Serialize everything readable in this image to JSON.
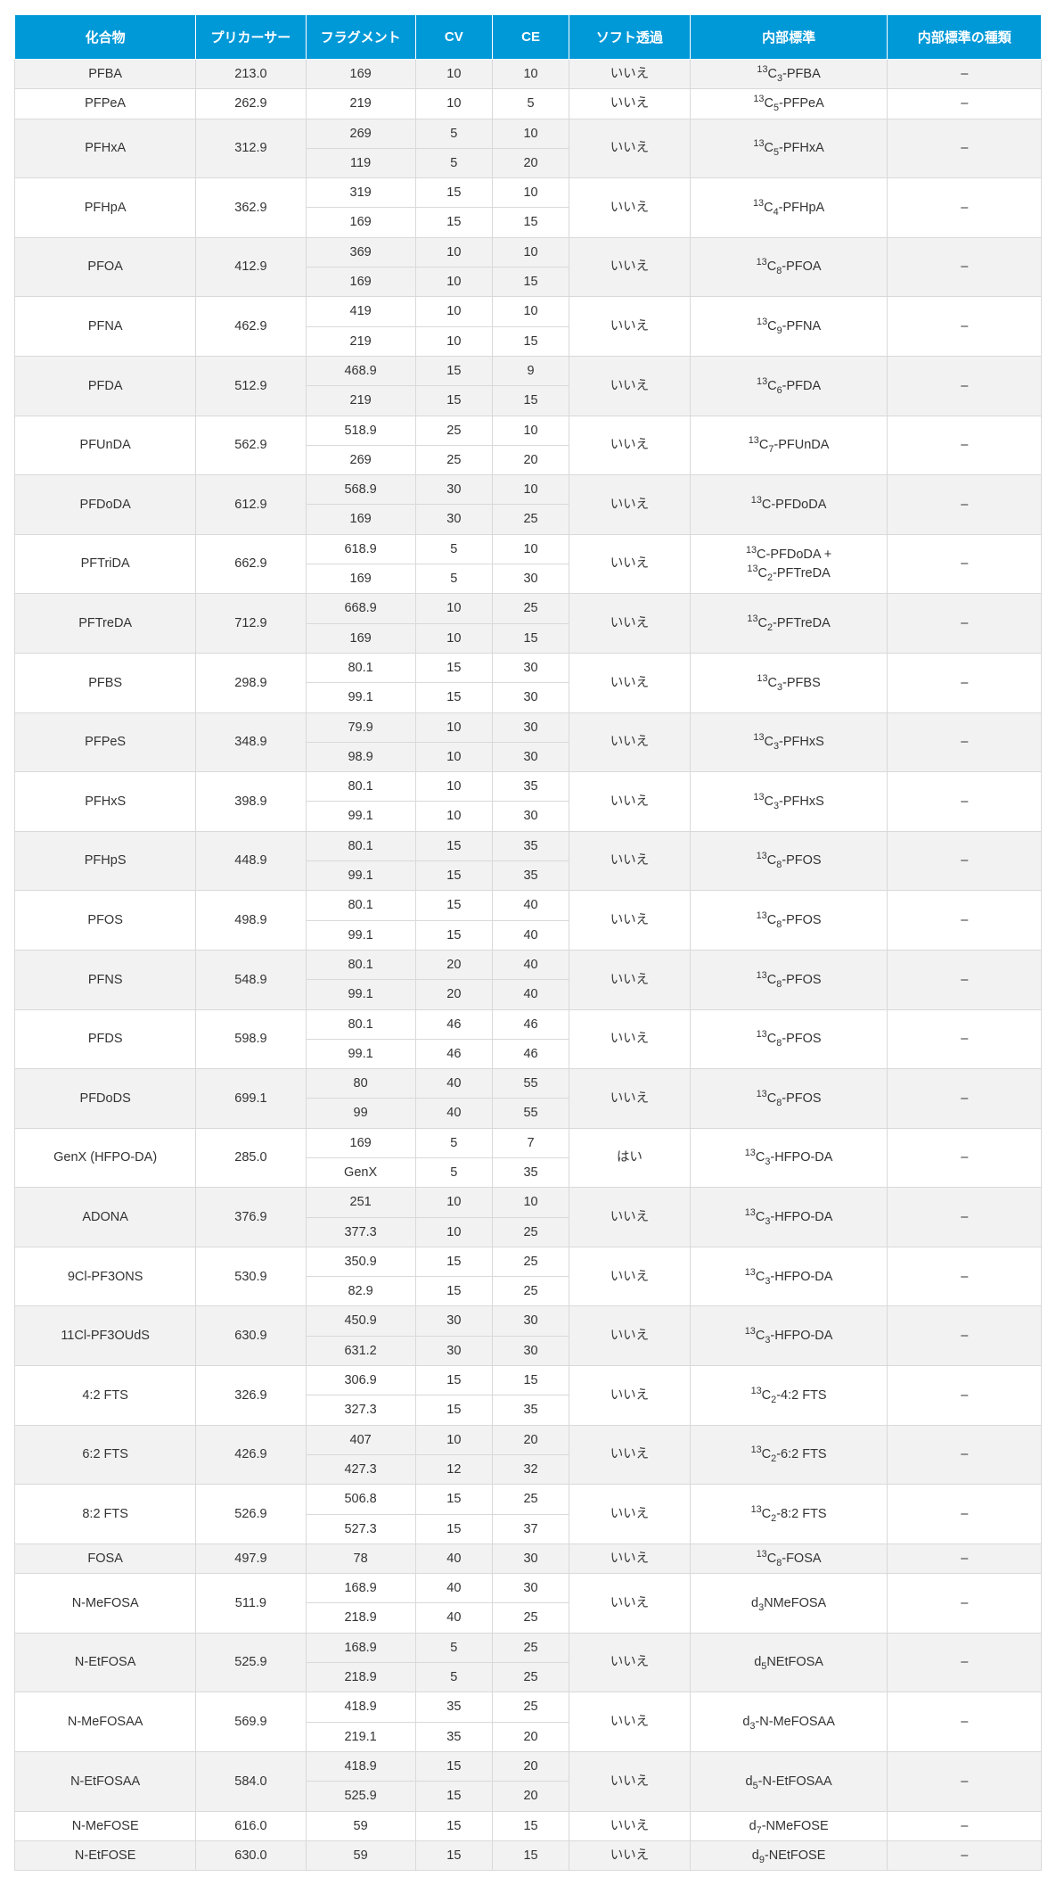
{
  "table": {
    "header_bg": "#0099d8",
    "header_fg": "#ffffff",
    "row_alt_bg": "#f2f2f2",
    "row_bg": "#ffffff",
    "border_color": "#d9d9d9",
    "columns": [
      "化合物",
      "プリカーサー",
      "フラグメント",
      "CV",
      "CE",
      "ソフト透過",
      "内部標準",
      "内部標準の種類"
    ],
    "col_widths_pct": [
      16.5,
      10,
      10,
      7,
      7,
      11,
      18,
      14
    ],
    "groups": [
      {
        "compound": "PFBA",
        "precursor": "213.0",
        "soft": "いいえ",
        "istd_html": "<sup>13</sup>C<sub>3</sub>-PFBA",
        "type": "–",
        "rows": [
          {
            "frag": "169",
            "cv": "10",
            "ce": "10"
          }
        ]
      },
      {
        "compound": "PFPeA",
        "precursor": "262.9",
        "soft": "いいえ",
        "istd_html": "<sup>13</sup>C<sub>5</sub>-PFPeA",
        "type": "–",
        "rows": [
          {
            "frag": "219",
            "cv": "10",
            "ce": "5"
          }
        ]
      },
      {
        "compound": "PFHxA",
        "precursor": "312.9",
        "soft": "いいえ",
        "istd_html": "<sup>13</sup>C<sub>5</sub>-PFHxA",
        "type": "–",
        "rows": [
          {
            "frag": "269",
            "cv": "5",
            "ce": "10"
          },
          {
            "frag": "119",
            "cv": "5",
            "ce": "20"
          }
        ]
      },
      {
        "compound": "PFHpA",
        "precursor": "362.9",
        "soft": "いいえ",
        "istd_html": "<sup>13</sup>C<sub>4</sub>-PFHpA",
        "type": "–",
        "rows": [
          {
            "frag": "319",
            "cv": "15",
            "ce": "10"
          },
          {
            "frag": "169",
            "cv": "15",
            "ce": "15"
          }
        ]
      },
      {
        "compound": "PFOA",
        "precursor": "412.9",
        "soft": "いいえ",
        "istd_html": "<sup>13</sup>C<sub>8</sub>-PFOA",
        "type": "–",
        "rows": [
          {
            "frag": "369",
            "cv": "10",
            "ce": "10"
          },
          {
            "frag": "169",
            "cv": "10",
            "ce": "15"
          }
        ]
      },
      {
        "compound": "PFNA",
        "precursor": "462.9",
        "soft": "いいえ",
        "istd_html": "<sup>13</sup>C<sub>9</sub>-PFNA",
        "type": "–",
        "rows": [
          {
            "frag": "419",
            "cv": "10",
            "ce": "10"
          },
          {
            "frag": "219",
            "cv": "10",
            "ce": "15"
          }
        ]
      },
      {
        "compound": "PFDA",
        "precursor": "512.9",
        "soft": "いいえ",
        "istd_html": "<sup>13</sup>C<sub>6</sub>-PFDA",
        "type": "–",
        "rows": [
          {
            "frag": "468.9",
            "cv": "15",
            "ce": "9"
          },
          {
            "frag": "219",
            "cv": "15",
            "ce": "15"
          }
        ]
      },
      {
        "compound": "PFUnDA",
        "precursor": "562.9",
        "soft": "いいえ",
        "istd_html": "<sup>13</sup>C<sub>7</sub>-PFUnDA",
        "type": "–",
        "rows": [
          {
            "frag": "518.9",
            "cv": "25",
            "ce": "10"
          },
          {
            "frag": "269",
            "cv": "25",
            "ce": "20"
          }
        ]
      },
      {
        "compound": "PFDoDA",
        "precursor": "612.9",
        "soft": "いいえ",
        "istd_html": "<sup>13</sup>C-PFDoDA",
        "type": "–",
        "rows": [
          {
            "frag": "568.9",
            "cv": "30",
            "ce": "10"
          },
          {
            "frag": "169",
            "cv": "30",
            "ce": "25"
          }
        ]
      },
      {
        "compound": "PFTriDA",
        "precursor": "662.9",
        "soft": "いいえ",
        "istd_html": "<sup>13</sup>C-PFDoDA +<br><sup>13</sup>C<sub>2</sub>-PFTreDA",
        "type": "–",
        "rows": [
          {
            "frag": "618.9",
            "cv": "5",
            "ce": "10"
          },
          {
            "frag": "169",
            "cv": "5",
            "ce": "30"
          }
        ]
      },
      {
        "compound": "PFTreDA",
        "precursor": "712.9",
        "soft": "いいえ",
        "istd_html": "<sup>13</sup>C<sub>2</sub>-PFTreDA",
        "type": "–",
        "rows": [
          {
            "frag": "668.9",
            "cv": "10",
            "ce": "25"
          },
          {
            "frag": "169",
            "cv": "10",
            "ce": "15"
          }
        ]
      },
      {
        "compound": "PFBS",
        "precursor": "298.9",
        "soft": "いいえ",
        "istd_html": "<sup>13</sup>C<sub>3</sub>-PFBS",
        "type": "–",
        "rows": [
          {
            "frag": "80.1",
            "cv": "15",
            "ce": "30"
          },
          {
            "frag": "99.1",
            "cv": "15",
            "ce": "30"
          }
        ]
      },
      {
        "compound": "PFPeS",
        "precursor": "348.9",
        "soft": "いいえ",
        "istd_html": "<sup>13</sup>C<sub>3</sub>-PFHxS",
        "type": "–",
        "rows": [
          {
            "frag": "79.9",
            "cv": "10",
            "ce": "30"
          },
          {
            "frag": "98.9",
            "cv": "10",
            "ce": "30"
          }
        ]
      },
      {
        "compound": "PFHxS",
        "precursor": "398.9",
        "soft": "いいえ",
        "istd_html": "<sup>13</sup>C<sub>3</sub>-PFHxS",
        "type": "–",
        "rows": [
          {
            "frag": "80.1",
            "cv": "10",
            "ce": "35"
          },
          {
            "frag": "99.1",
            "cv": "10",
            "ce": "30"
          }
        ]
      },
      {
        "compound": "PFHpS",
        "precursor": "448.9",
        "soft": "いいえ",
        "istd_html": "<sup>13</sup>C<sub>8</sub>-PFOS",
        "type": "–",
        "rows": [
          {
            "frag": "80.1",
            "cv": "15",
            "ce": "35"
          },
          {
            "frag": "99.1",
            "cv": "15",
            "ce": "35"
          }
        ]
      },
      {
        "compound": "PFOS",
        "precursor": "498.9",
        "soft": "いいえ",
        "istd_html": "<sup>13</sup>C<sub>8</sub>-PFOS",
        "type": "–",
        "rows": [
          {
            "frag": "80.1",
            "cv": "15",
            "ce": "40"
          },
          {
            "frag": "99.1",
            "cv": "15",
            "ce": "40"
          }
        ]
      },
      {
        "compound": "PFNS",
        "precursor": "548.9",
        "soft": "いいえ",
        "istd_html": "<sup>13</sup>C<sub>8</sub>-PFOS",
        "type": "–",
        "rows": [
          {
            "frag": "80.1",
            "cv": "20",
            "ce": "40"
          },
          {
            "frag": "99.1",
            "cv": "20",
            "ce": "40"
          }
        ]
      },
      {
        "compound": "PFDS",
        "precursor": "598.9",
        "soft": "いいえ",
        "istd_html": "<sup>13</sup>C<sub>8</sub>-PFOS",
        "type": "–",
        "rows": [
          {
            "frag": "80.1",
            "cv": "46",
            "ce": "46"
          },
          {
            "frag": "99.1",
            "cv": "46",
            "ce": "46"
          }
        ]
      },
      {
        "compound": "PFDoDS",
        "precursor": "699.1",
        "soft": "いいえ",
        "istd_html": "<sup>13</sup>C<sub>8</sub>-PFOS",
        "type": "–",
        "rows": [
          {
            "frag": "80",
            "cv": "40",
            "ce": "55"
          },
          {
            "frag": "99",
            "cv": "40",
            "ce": "55"
          }
        ]
      },
      {
        "compound": "GenX (HFPO-DA)",
        "precursor": "285.0",
        "soft": "はい",
        "istd_html": "<sup>13</sup>C<sub>3</sub>-HFPO-DA",
        "type": "–",
        "rows": [
          {
            "frag": "169",
            "cv": "5",
            "ce": "7"
          },
          {
            "frag": "GenX",
            "cv": "5",
            "ce": "35"
          }
        ]
      },
      {
        "compound": "ADONA",
        "precursor": "376.9",
        "soft": "いいえ",
        "istd_html": "<sup>13</sup>C<sub>3</sub>-HFPO-DA",
        "type": "–",
        "rows": [
          {
            "frag": "251",
            "cv": "10",
            "ce": "10"
          },
          {
            "frag": "377.3",
            "cv": "10",
            "ce": "25"
          }
        ]
      },
      {
        "compound": "9Cl-PF3ONS",
        "precursor": "530.9",
        "soft": "いいえ",
        "istd_html": "<sup>13</sup>C<sub>3</sub>-HFPO-DA",
        "type": "–",
        "rows": [
          {
            "frag": "350.9",
            "cv": "15",
            "ce": "25"
          },
          {
            "frag": "82.9",
            "cv": "15",
            "ce": "25"
          }
        ]
      },
      {
        "compound": "11Cl-PF3OUdS",
        "precursor": "630.9",
        "soft": "いいえ",
        "istd_html": "<sup>13</sup>C<sub>3</sub>-HFPO-DA",
        "type": "–",
        "rows": [
          {
            "frag": "450.9",
            "cv": "30",
            "ce": "30"
          },
          {
            "frag": "631.2",
            "cv": "30",
            "ce": "30"
          }
        ]
      },
      {
        "compound": "4:2 FTS",
        "precursor": "326.9",
        "soft": "いいえ",
        "istd_html": "<sup>13</sup>C<sub>2</sub>-4:2 FTS",
        "type": "–",
        "rows": [
          {
            "frag": "306.9",
            "cv": "15",
            "ce": "15"
          },
          {
            "frag": "327.3",
            "cv": "15",
            "ce": "35"
          }
        ]
      },
      {
        "compound": "6:2 FTS",
        "precursor": "426.9",
        "soft": "いいえ",
        "istd_html": "<sup>13</sup>C<sub>2</sub>-6:2 FTS",
        "type": "–",
        "rows": [
          {
            "frag": "407",
            "cv": "10",
            "ce": "20"
          },
          {
            "frag": "427.3",
            "cv": "12",
            "ce": "32"
          }
        ]
      },
      {
        "compound": "8:2 FTS",
        "precursor": "526.9",
        "soft": "いいえ",
        "istd_html": "<sup>13</sup>C<sub>2</sub>-8:2 FTS",
        "type": "–",
        "rows": [
          {
            "frag": "506.8",
            "cv": "15",
            "ce": "25"
          },
          {
            "frag": "527.3",
            "cv": "15",
            "ce": "37"
          }
        ]
      },
      {
        "compound": "FOSA",
        "precursor": "497.9",
        "soft": "いいえ",
        "istd_html": "<sup>13</sup>C<sub>8</sub>-FOSA",
        "type": "–",
        "rows": [
          {
            "frag": "78",
            "cv": "40",
            "ce": "30"
          }
        ]
      },
      {
        "compound": "N-MeFOSA",
        "precursor": "511.9",
        "soft": "いいえ",
        "istd_html": "d<sub>3</sub>NMeFOSA",
        "type": "–",
        "rows": [
          {
            "frag": "168.9",
            "cv": "40",
            "ce": "30"
          },
          {
            "frag": "218.9",
            "cv": "40",
            "ce": "25"
          }
        ]
      },
      {
        "compound": "N-EtFOSA",
        "precursor": "525.9",
        "soft": "いいえ",
        "istd_html": "d<sub>5</sub>NEtFOSA",
        "type": "–",
        "rows": [
          {
            "frag": "168.9",
            "cv": "5",
            "ce": "25"
          },
          {
            "frag": "218.9",
            "cv": "5",
            "ce": "25"
          }
        ]
      },
      {
        "compound": "N-MeFOSAA",
        "precursor": "569.9",
        "soft": "いいえ",
        "istd_html": "d<sub>3</sub>-N-MeFOSAA",
        "type": "–",
        "rows": [
          {
            "frag": "418.9",
            "cv": "35",
            "ce": "25"
          },
          {
            "frag": "219.1",
            "cv": "35",
            "ce": "20"
          }
        ]
      },
      {
        "compound": "N-EtFOSAA",
        "precursor": "584.0",
        "soft": "いいえ",
        "istd_html": "d<sub>5</sub>-N-EtFOSAA",
        "type": "–",
        "rows": [
          {
            "frag": "418.9",
            "cv": "15",
            "ce": "20"
          },
          {
            "frag": "525.9",
            "cv": "15",
            "ce": "20"
          }
        ]
      },
      {
        "compound": "N-MeFOSE",
        "precursor": "616.0",
        "soft": "いいえ",
        "istd_html": "d<sub>7</sub>-NMeFOSE",
        "type": "–",
        "rows": [
          {
            "frag": "59",
            "cv": "15",
            "ce": "15"
          }
        ]
      },
      {
        "compound": "N-EtFOSE",
        "precursor": "630.0",
        "soft": "いいえ",
        "istd_html": "d<sub>9</sub>-NEtFOSE",
        "type": "–",
        "rows": [
          {
            "frag": "59",
            "cv": "15",
            "ce": "15"
          }
        ]
      }
    ]
  }
}
